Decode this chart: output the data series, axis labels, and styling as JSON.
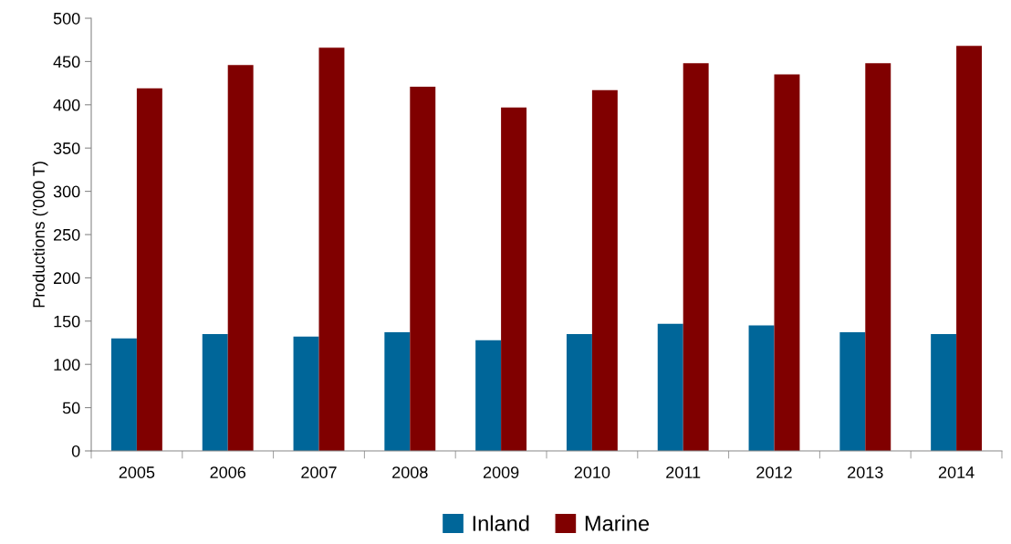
{
  "chart_data": {
    "type": "bar",
    "ylabel": "Productions ('000 T)",
    "categories": [
      "2005",
      "2006",
      "2007",
      "2008",
      "2009",
      "2010",
      "2011",
      "2012",
      "2013",
      "2014"
    ],
    "series": [
      {
        "name": "Inland",
        "color": "#006699",
        "values": [
          130,
          135,
          132,
          137,
          128,
          135,
          147,
          145,
          137,
          135
        ]
      },
      {
        "name": "Marine",
        "color": "#800000",
        "values": [
          419,
          446,
          466,
          421,
          397,
          417,
          448,
          435,
          448,
          468
        ]
      }
    ],
    "ylim": [
      0,
      500
    ],
    "yticks": [
      0,
      50,
      100,
      150,
      200,
      250,
      300,
      350,
      400,
      450,
      500
    ],
    "grid": false,
    "legend": "bottom"
  }
}
